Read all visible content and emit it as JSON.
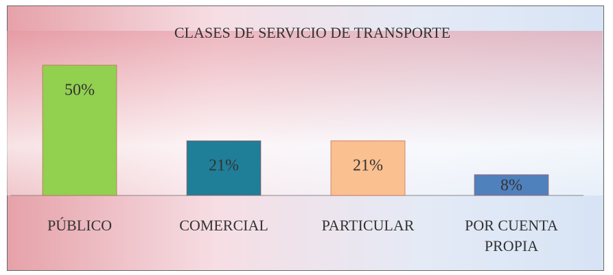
{
  "chart_data": {
    "type": "bar",
    "title": "CLASES DE SERVICIO DE TRANSPORTE",
    "categories": [
      "PÚBLICO",
      "COMERCIAL",
      "PARTICULAR",
      "POR CUENTA PROPIA"
    ],
    "values": [
      50,
      21,
      21,
      8
    ],
    "value_labels": [
      "50%",
      "21%",
      "21%",
      "8%"
    ],
    "colors": [
      "#92d050",
      "#1f7f99",
      "#fac090",
      "#4f81bd"
    ]
  }
}
